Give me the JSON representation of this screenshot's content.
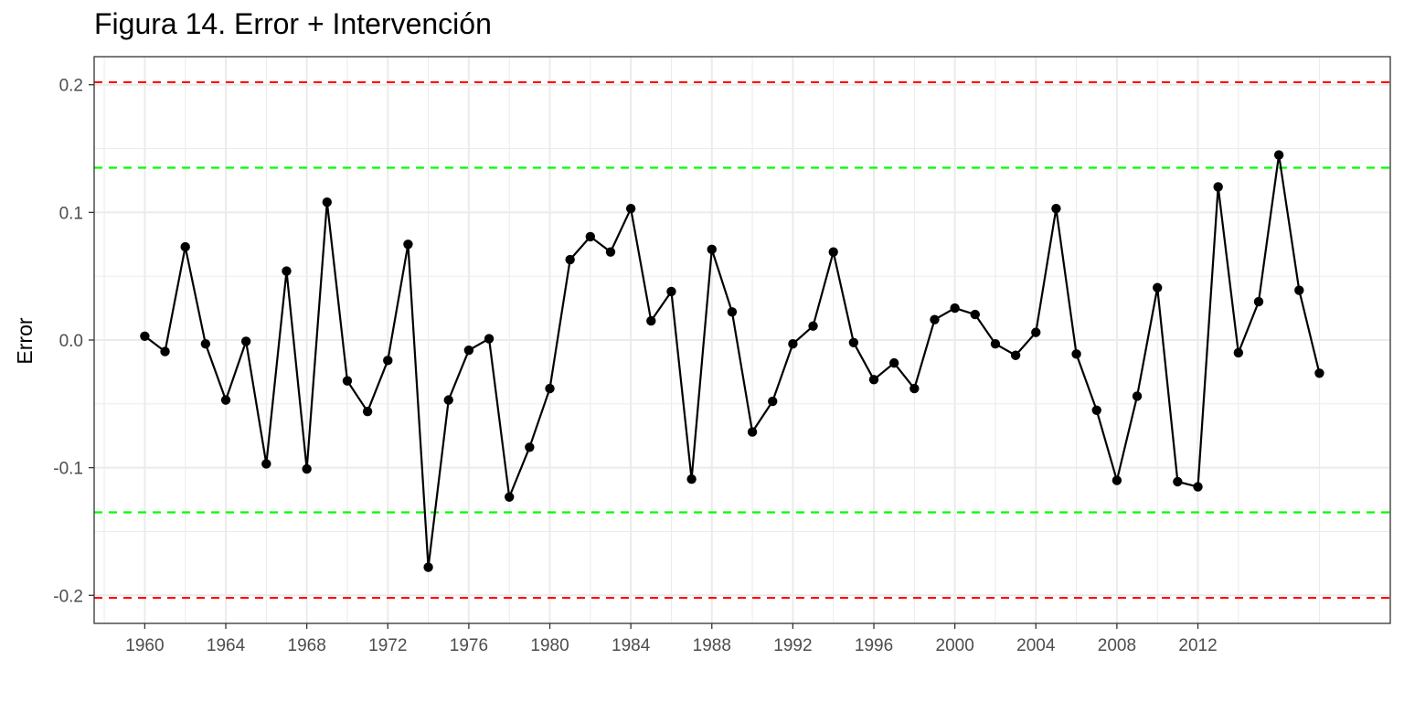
{
  "chart_data": {
    "type": "line",
    "title": "Figura 14. Error + Intervención",
    "xlabel": "",
    "ylabel": "Error",
    "xlim": [
      1957.5,
      2021.5
    ],
    "ylim": [
      -0.222,
      0.222
    ],
    "x_ticks": [
      1960,
      1964,
      1968,
      1972,
      1976,
      1980,
      1984,
      1988,
      1992,
      1996,
      2000,
      2004,
      2008,
      2012
    ],
    "x_tick_labels": [
      "1960",
      "1964",
      "1968",
      "1972",
      "1976",
      "1980",
      "1984",
      "1988",
      "1992",
      "1996",
      "2000",
      "2004",
      "2008",
      "2012"
    ],
    "y_ticks": [
      -0.2,
      -0.1,
      0.0,
      0.1,
      0.2
    ],
    "y_tick_labels": [
      "-0.2",
      "-0.1",
      "0.0",
      "0.1",
      "0.2"
    ],
    "grid": true,
    "series": [
      {
        "x": [
          1960,
          1961,
          1962,
          1963,
          1964,
          1965,
          1966,
          1967,
          1968,
          1969,
          1970,
          1971,
          1972,
          1973,
          1974,
          1975,
          1976,
          1977,
          1978,
          1979,
          1980,
          1981,
          1982,
          1983,
          1984,
          1985,
          1986,
          1987,
          1988,
          1989,
          1990,
          1991,
          1992,
          1993,
          1994,
          1995,
          1996,
          1997,
          1998,
          1999,
          2000,
          2001,
          2002,
          2003,
          2004,
          2005,
          2006,
          2007,
          2008,
          2009,
          2010,
          2011,
          2012,
          2013,
          2014,
          2015,
          2016,
          2017,
          2018
        ],
        "values": [
          0.003,
          -0.009,
          0.073,
          -0.003,
          -0.047,
          -0.001,
          -0.097,
          0.054,
          -0.101,
          0.108,
          -0.032,
          -0.056,
          -0.016,
          0.075,
          -0.178,
          -0.047,
          -0.008,
          0.001,
          -0.123,
          -0.084,
          -0.038,
          0.063,
          0.081,
          0.069,
          0.103,
          0.015,
          0.038,
          -0.109,
          0.071,
          0.022,
          -0.072,
          -0.048,
          -0.003,
          0.011,
          0.069,
          -0.002,
          -0.031,
          -0.018,
          -0.038,
          0.016,
          0.025,
          0.02,
          -0.003,
          -0.012,
          0.006,
          0.103,
          -0.011,
          -0.055,
          -0.11,
          -0.044,
          0.041,
          -0.111,
          -0.115,
          0.12,
          -0.01,
          0.03,
          0.145,
          0.039,
          -0.026
        ],
        "color": "#000000"
      }
    ],
    "reference_lines": [
      {
        "y": 0.202,
        "color": "#ff0000",
        "style": "dashed"
      },
      {
        "y": 0.135,
        "color": "#00ff00",
        "style": "dashed"
      },
      {
        "y": -0.135,
        "color": "#00ff00",
        "style": "dashed"
      },
      {
        "y": -0.202,
        "color": "#ff0000",
        "style": "dashed"
      }
    ]
  }
}
